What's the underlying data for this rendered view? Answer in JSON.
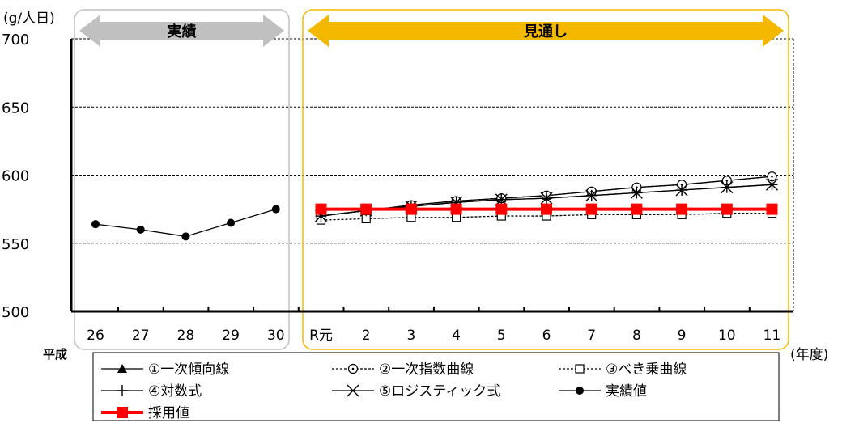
{
  "chart_data": {
    "type": "line",
    "ylabel": "(g/人日)",
    "xlabel": "(年度)",
    "era_label": "平成",
    "ylim": [
      500,
      700
    ],
    "yticks": [
      500,
      550,
      600,
      650,
      700
    ],
    "grid": true,
    "categories": [
      "26",
      "27",
      "28",
      "29",
      "30",
      "R元",
      "2",
      "3",
      "4",
      "5",
      "6",
      "7",
      "8",
      "9",
      "10",
      "11"
    ],
    "sections": [
      {
        "label": "実績",
        "from": 0,
        "to": 4,
        "color": "#c0c0c0"
      },
      {
        "label": "見通し",
        "from": 5,
        "to": 15,
        "color": "#f5b800"
      }
    ],
    "legend_placement": "bottom",
    "series": [
      {
        "name": "①一次傾向線",
        "marker": "triangle",
        "dash": "solid",
        "values": [
          null,
          null,
          null,
          null,
          null,
          570,
          574,
          578,
          581,
          583,
          585,
          588,
          591,
          593,
          596,
          599
        ]
      },
      {
        "name": "②一次指数曲線",
        "marker": "circle-open",
        "dash": "dashed",
        "values": [
          null,
          null,
          null,
          null,
          null,
          570,
          574,
          578,
          581,
          583,
          585,
          588,
          591,
          593,
          596,
          599
        ]
      },
      {
        "name": "③べき乗曲線",
        "marker": "square-open",
        "dash": "dashed",
        "values": [
          null,
          null,
          null,
          null,
          null,
          567,
          568,
          569,
          569,
          570,
          570,
          571,
          571,
          571,
          572,
          572
        ]
      },
      {
        "name": "④対数式",
        "marker": "plus",
        "dash": "solid",
        "values": [
          null,
          null,
          null,
          null,
          null,
          570,
          574,
          577,
          580,
          582,
          583,
          585,
          587,
          589,
          591,
          593
        ]
      },
      {
        "name": "⑤ロジスティック式",
        "marker": "x",
        "dash": "solid",
        "values": [
          null,
          null,
          null,
          null,
          null,
          570,
          574,
          577,
          580,
          582,
          583,
          585,
          587,
          589,
          591,
          593
        ]
      },
      {
        "name": "実績値",
        "marker": "dot",
        "dash": "solid",
        "values": [
          564,
          560,
          555,
          565,
          575,
          null,
          null,
          null,
          null,
          null,
          null,
          null,
          null,
          null,
          null,
          null
        ]
      },
      {
        "name": "採用値",
        "marker": "square-red",
        "dash": "solid",
        "color": "#ff0000",
        "values": [
          null,
          null,
          null,
          null,
          null,
          575,
          575,
          575,
          575,
          575,
          575,
          575,
          575,
          575,
          575,
          575
        ]
      }
    ]
  }
}
